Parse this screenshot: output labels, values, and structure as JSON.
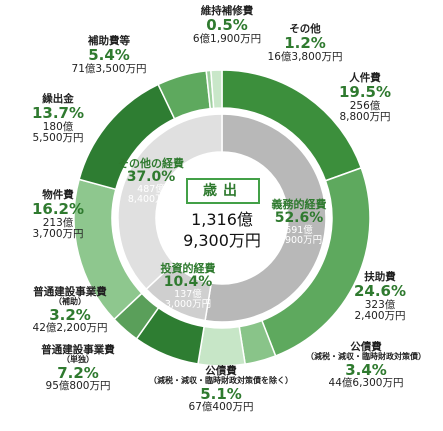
{
  "chart_data": {
    "type": "pie",
    "center": {
      "title": "歳出",
      "total_line1": "1,316億",
      "total_line2": "9,300万円"
    },
    "outer": [
      {
        "name": "人件費",
        "sub": "",
        "percent": 19.5,
        "pct_label": "19.5%",
        "amount_line1": "256億",
        "amount_line2": "8,800万円",
        "color": "#3c8f3c"
      },
      {
        "name": "扶助費",
        "sub": "",
        "percent": 24.6,
        "pct_label": "24.6%",
        "amount_line1": "323億",
        "amount_line2": "2,400万円",
        "color": "#5ea95e"
      },
      {
        "name": "公債費",
        "sub": "（減税・減収・臨時財政対策債）",
        "percent": 3.4,
        "pct_label": "3.4%",
        "amount_line1": "44億6,300万円",
        "amount_line2": "",
        "color": "#89c489"
      },
      {
        "name": "公債費",
        "sub": "（減税・減収・臨時財政対策債を除く）",
        "percent": 5.1,
        "pct_label": "5.1%",
        "amount_line1": "67億400万円",
        "amount_line2": "",
        "color": "#c7e6c7"
      },
      {
        "name": "普通建設事業費",
        "sub": "（単独）",
        "percent": 7.2,
        "pct_label": "7.2%",
        "amount_line1": "95億800万円",
        "amount_line2": "",
        "color": "#2e7d32"
      },
      {
        "name": "普通建設事業費",
        "sub": "（補助）",
        "percent": 3.2,
        "pct_label": "3.2%",
        "amount_line1": "42億2,200万円",
        "amount_line2": "",
        "color": "#5a9f5a"
      },
      {
        "name": "物件費",
        "sub": "",
        "percent": 16.2,
        "pct_label": "16.2%",
        "amount_line1": "213億",
        "amount_line2": "3,700万円",
        "color": "#8ec78e"
      },
      {
        "name": "繰出金",
        "sub": "",
        "percent": 13.7,
        "pct_label": "13.7%",
        "amount_line1": "180億",
        "amount_line2": "5,500万円",
        "color": "#2e7d32"
      },
      {
        "name": "補助費等",
        "sub": "",
        "percent": 5.4,
        "pct_label": "5.4%",
        "amount_line1": "71億3,500万円",
        "amount_line2": "",
        "color": "#5ea95e"
      },
      {
        "name": "維持補修費",
        "sub": "",
        "percent": 0.5,
        "pct_label": "0.5%",
        "amount_line1": "6億1,900万円",
        "amount_line2": "",
        "color": "#9fd09f"
      },
      {
        "name": "その他",
        "sub": "",
        "percent": 1.2,
        "pct_label": "1.2%",
        "amount_line1": "16億3,800万円",
        "amount_line2": "",
        "color": "#c9e7c9"
      }
    ],
    "inner": [
      {
        "name": "義務的経費",
        "percent": 52.6,
        "pct_label": "52.6%",
        "amount_line1": "691億",
        "amount_line2": "7,900万円",
        "color": "#b8b8b8"
      },
      {
        "name": "投資的経費",
        "percent": 10.4,
        "pct_label": "10.4%",
        "amount_line1": "137億",
        "amount_line2": "3,000万円",
        "color": "#cfcfcf"
      },
      {
        "name": "その他の経費",
        "percent": 37.0,
        "pct_label": "37.0%",
        "amount_line1": "487億",
        "amount_line2": "8,400万円",
        "color": "#e0e0e0"
      }
    ]
  }
}
